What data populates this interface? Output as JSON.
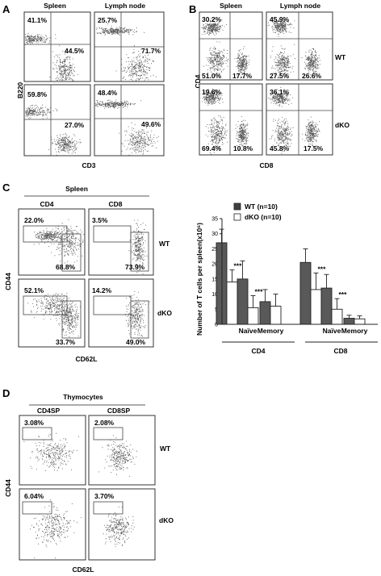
{
  "panelA": {
    "label": "A",
    "col_headers": [
      "Spleen",
      "Lymph node"
    ],
    "ylabel": "B220",
    "xlabel": "CD3",
    "plots": [
      {
        "name": "a-spleen-wt",
        "pct": [
          "41.1%",
          "44.5%"
        ]
      },
      {
        "name": "a-lymph-wt",
        "pct": [
          "25.7%",
          "71.7%"
        ]
      },
      {
        "name": "a-spleen-dko",
        "pct": [
          "59.8%",
          "27.0%"
        ]
      },
      {
        "name": "a-lymph-dko",
        "pct": [
          "48.4%",
          "49.6%"
        ]
      }
    ]
  },
  "panelB": {
    "label": "B",
    "col_headers": [
      "Spleen",
      "Lymph node"
    ],
    "ylabel": "CD4",
    "xlabel": "CD8",
    "row_labels": [
      "WT",
      "dKO"
    ],
    "plots": [
      {
        "name": "b-spleen-wt",
        "pct": [
          "30.2%",
          "51.0%",
          "17.7%"
        ]
      },
      {
        "name": "b-lymph-wt",
        "pct": [
          "45.9%",
          "27.5%",
          "26.6%"
        ]
      },
      {
        "name": "b-spleen-dko",
        "pct": [
          "19.6%",
          "69.4%",
          "10.8%"
        ]
      },
      {
        "name": "b-lymph-dko",
        "pct": [
          "36.1%",
          "45.8%",
          "17.5%"
        ]
      }
    ]
  },
  "panelC": {
    "label": "C",
    "group_header": "Spleen",
    "col_headers": [
      "CD4",
      "CD8"
    ],
    "ylabel": "CD44",
    "xlabel": "CD62L",
    "row_labels": [
      "WT",
      "dKO"
    ],
    "plots": [
      {
        "name": "c-cd4-wt",
        "pct": [
          "22.0%",
          "68.8%"
        ]
      },
      {
        "name": "c-cd8-wt",
        "pct": [
          "3.5%",
          "73.9%"
        ]
      },
      {
        "name": "c-cd4-dko",
        "pct": [
          "52.1%",
          "33.7%"
        ]
      },
      {
        "name": "c-cd8-dko",
        "pct": [
          "14.2%",
          "49.0%"
        ]
      }
    ]
  },
  "panelD": {
    "label": "D",
    "group_header": "Thymocytes",
    "col_headers": [
      "CD4SP",
      "CD8SP"
    ],
    "ylabel": "CD44",
    "xlabel": "CD62L",
    "row_labels": [
      "WT",
      "dKO"
    ],
    "plots": [
      {
        "name": "d-cd4sp-wt",
        "pct": [
          "3.08%"
        ]
      },
      {
        "name": "d-cd8sp-wt",
        "pct": [
          "2.08%"
        ]
      },
      {
        "name": "d-cd4sp-dko",
        "pct": [
          "6.04%"
        ]
      },
      {
        "name": "d-cd8sp-dko",
        "pct": [
          "3.70%"
        ]
      }
    ]
  },
  "chart_data": {
    "type": "bar",
    "ylabel": "Number of T cells per spleen(x10⁶)",
    "ylim": [
      0,
      35
    ],
    "yticks": [
      "0",
      "5",
      "10",
      "15",
      "20",
      "25",
      "30",
      "35"
    ],
    "categories": [
      "",
      "Naïve",
      "Memory",
      "",
      "Naïve",
      "Memory"
    ],
    "groups": [
      "CD4",
      "CD8"
    ],
    "series": [
      {
        "name": "WT (n=10)",
        "color": "#595959",
        "values": [
          27.0,
          15.0,
          7.5,
          20.5,
          12.0,
          2.0
        ],
        "errors": [
          4.5,
          6.0,
          4.0,
          4.5,
          4.5,
          1.0
        ]
      },
      {
        "name": "dKO (n=10)",
        "color": "#ffffff",
        "values": [
          14.0,
          5.5,
          6.0,
          11.5,
          5.0,
          1.8
        ],
        "errors": [
          4.0,
          4.0,
          4.0,
          5.5,
          3.5,
          1.0
        ]
      }
    ],
    "annotations": [
      "***",
      "***",
      "***",
      "***"
    ],
    "legend": "top-left"
  }
}
